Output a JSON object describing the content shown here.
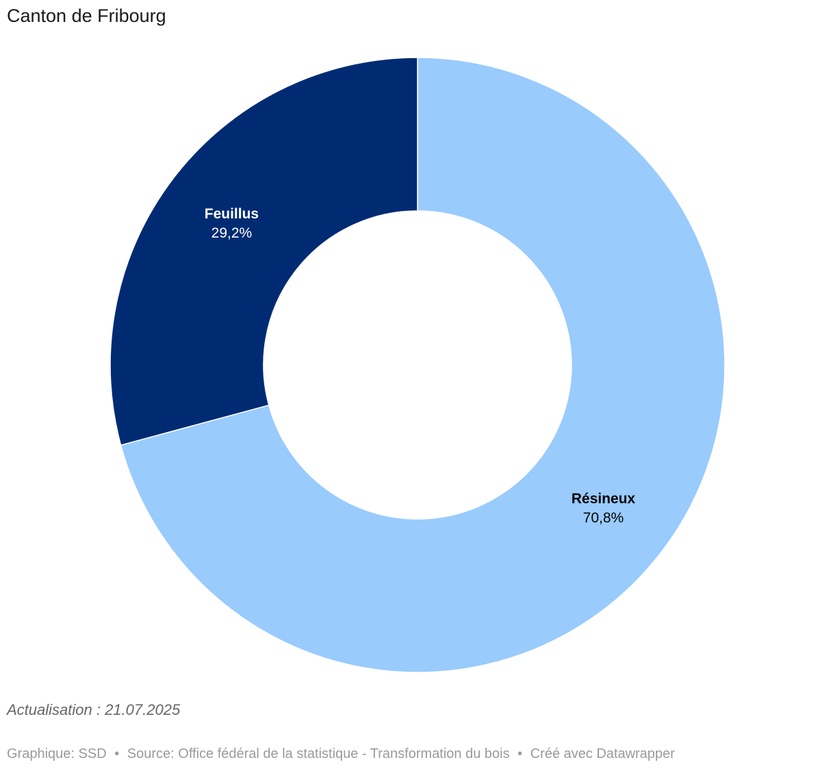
{
  "chart_data": {
    "type": "pie",
    "variant": "donut",
    "title": "Canton de Fribourg",
    "slices": [
      {
        "label": "Résineux",
        "value": 70.8,
        "value_label": "70,8%",
        "color": "#99cbfd",
        "text_color": "#000000"
      },
      {
        "label": "Feuillus",
        "value": 29.2,
        "value_label": "29,2%",
        "color": "#002b73",
        "text_color": "#ffffff"
      }
    ],
    "start": "12 o'clock, clockwise"
  },
  "notes": "Actualisation : 21.07.2025",
  "footer": {
    "graphique": "Graphique: SSD",
    "source": "Source: Office fédéral de la statistique - Transformation du bois",
    "created": "Créé avec Datawrapper",
    "separator": "•"
  }
}
